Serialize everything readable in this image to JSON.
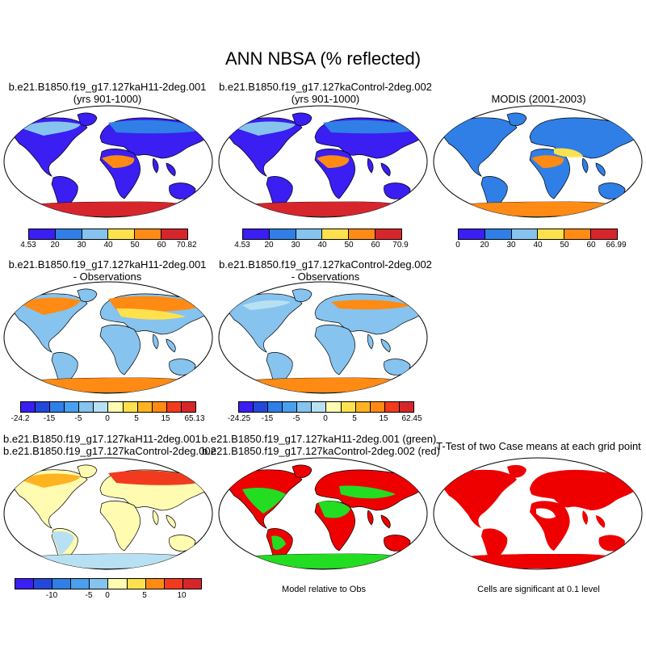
{
  "title": "ANN NBSA (% reflected)",
  "panels": {
    "p1": {
      "line1": "b.e21.B1850.f19_g17.127kaH11-2deg.001",
      "line2": "(yrs 901-1000)"
    },
    "p2": {
      "line1": "b.e21.B1850.f19_g17.127kaControl-2deg.002",
      "line2": "(yrs 901-1000)"
    },
    "p3": {
      "line1": "MODIS (2001-2003)"
    },
    "p4": {
      "line1": "b.e21.B1850.f19_g17.127kaH11-2deg.001",
      "line2": "- Observations"
    },
    "p5": {
      "line1": "b.e21.B1850.f19_g17.127kaControl-2deg.002",
      "line2": "- Observations"
    },
    "p7": {
      "line1": "b.e21.B1850.f19_g17.127kaH11-2deg.001",
      "line2": "b.e21.B1850.f19_g17.127kaControl-2deg.002"
    },
    "p8": {
      "line1": "b.e21.B1850.f19_g17.127kaH11-2deg.001 (green)",
      "line2": "b.e21.B1850.f19_g17.127kaControl-2deg.002 (red)"
    },
    "p9": {
      "line1": "T-Test of two Case means at each grid point"
    }
  },
  "colorbars": {
    "cb1": {
      "ticks": [
        "4.53",
        "20",
        "30",
        "40",
        "50",
        "60",
        "70.82"
      ]
    },
    "cb2": {
      "ticks": [
        "4.53",
        "20",
        "30",
        "40",
        "50",
        "60",
        "70.9"
      ]
    },
    "cb3": {
      "ticks": [
        "0",
        "20",
        "30",
        "40",
        "50",
        "60",
        "66.99"
      ]
    },
    "cb4": {
      "ticks": [
        "-24.2",
        "-15",
        "-5",
        "0",
        "5",
        "15",
        "65.13"
      ]
    },
    "cb5": {
      "ticks": [
        "-24.25",
        "-15",
        "-5",
        "0",
        "5",
        "15",
        "62.45"
      ]
    },
    "cb7": {
      "ticks": [
        "-10",
        "-5",
        "0",
        "5",
        "10"
      ]
    }
  },
  "notes": {
    "p8": "Model relative to Obs",
    "p9": "Cells are significant at 0.1 level"
  },
  "colors": {
    "abs_scale": [
      "#3a1ef2",
      "#2f7fe6",
      "#86c3ee",
      "#ffe14d",
      "#ff8a14",
      "#f25a1e",
      "#d7262b"
    ],
    "diff_scale": [
      "#3a1ef2",
      "#2448d9",
      "#2f7fe6",
      "#4aa0ee",
      "#86c3ee",
      "#b8e0f3",
      "#fffbb0",
      "#ffe14d",
      "#ffb321",
      "#ff8a14",
      "#f23a1e",
      "#d7262b"
    ],
    "green": "#22dd22",
    "red": "#ee0000"
  }
}
